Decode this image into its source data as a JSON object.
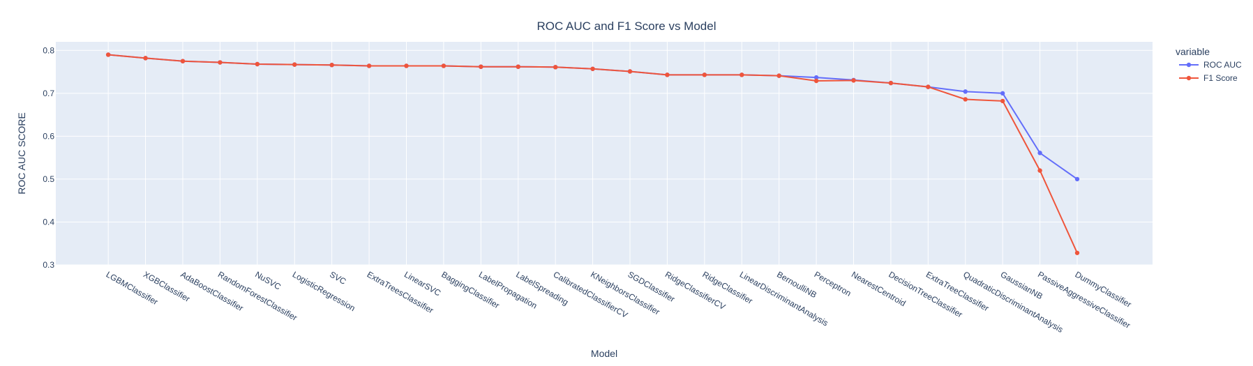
{
  "chart_data": {
    "type": "line",
    "title": "ROC AUC and F1 Score vs Model",
    "xlabel": "Model",
    "ylabel": "ROC AUC SCORE",
    "ylim": [
      0.3,
      0.82
    ],
    "yticks": [
      0.3,
      0.4,
      0.5,
      0.6,
      0.7,
      0.8
    ],
    "yticklabels": [
      "0.3",
      "0.4",
      "0.5",
      "0.6",
      "0.7",
      "0.8"
    ],
    "grid": true,
    "legend_title": "variable",
    "legend_position": "top-right",
    "categories": [
      "LGBMClassifier",
      "XGBClassifier",
      "AdaBoostClassifier",
      "RandomForestClassifier",
      "NuSVC",
      "LogisticRegression",
      "SVC",
      "ExtraTreesClassifier",
      "LinearSVC",
      "BaggingClassifier",
      "LabelPropagation",
      "LabelSpreading",
      "CalibratedClassifierCV",
      "KNeighborsClassifier",
      "SGDClassifier",
      "RidgeClassifierCV",
      "RidgeClassifier",
      "LinearDiscriminantAnalysis",
      "BernoulliNB",
      "Perceptron",
      "NearestCentroid",
      "DecisionTreeClassifier",
      "ExtraTreeClassifier",
      "QuadraticDiscriminantAnalysis",
      "GaussianNB",
      "PassiveAggressiveClassifier",
      "DummyClassifier"
    ],
    "series": [
      {
        "name": "ROC AUC",
        "color": "#636efa",
        "values": [
          0.79,
          0.782,
          0.775,
          0.772,
          0.768,
          0.767,
          0.766,
          0.764,
          0.764,
          0.764,
          0.762,
          0.762,
          0.761,
          0.757,
          0.751,
          0.743,
          0.743,
          0.743,
          0.741,
          0.737,
          0.731,
          0.724,
          0.715,
          0.704,
          0.7,
          0.561,
          0.5
        ]
      },
      {
        "name": "F1 Score",
        "color": "#ef553b",
        "values": [
          0.79,
          0.782,
          0.775,
          0.772,
          0.768,
          0.767,
          0.766,
          0.764,
          0.764,
          0.764,
          0.762,
          0.762,
          0.761,
          0.757,
          0.751,
          0.743,
          0.743,
          0.743,
          0.741,
          0.729,
          0.73,
          0.724,
          0.715,
          0.686,
          0.682,
          0.52,
          0.328
        ]
      }
    ]
  }
}
